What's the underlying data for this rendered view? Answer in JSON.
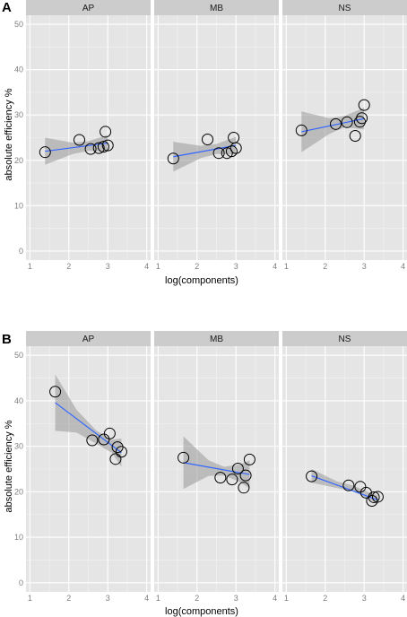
{
  "chart_data": [
    {
      "label": "A",
      "type": "scatter",
      "xlabel": "log(components)",
      "ylabel": "absolute efficiency %",
      "xlim": [
        0.9,
        4.1
      ],
      "ylim": [
        -2,
        52
      ],
      "xticks": [
        "1",
        "2",
        "3",
        "4"
      ],
      "yticks": [
        "0",
        "10",
        "20",
        "30",
        "40",
        "50"
      ],
      "facets": [
        {
          "name": "AP",
          "points": [
            [
              1.39,
              21.8
            ],
            [
              2.27,
              24.5
            ],
            [
              2.56,
              22.5
            ],
            [
              2.77,
              22.7
            ],
            [
              2.89,
              23.0
            ],
            [
              2.94,
              26.3
            ],
            [
              3.0,
              23.3
            ]
          ],
          "fit": [
            [
              1.39,
              22.0
            ],
            [
              3.0,
              23.8
            ]
          ],
          "band_low": [
            [
              1.39,
              19.0
            ],
            [
              2.1,
              21.4
            ],
            [
              2.5,
              22.1
            ],
            [
              3.0,
              22.0
            ]
          ],
          "band_high": [
            [
              1.39,
              25.0
            ],
            [
              2.1,
              23.9
            ],
            [
              2.5,
              24.2
            ],
            [
              3.0,
              25.6
            ]
          ]
        },
        {
          "name": "MB",
          "points": [
            [
              1.39,
              20.4
            ],
            [
              2.27,
              24.6
            ],
            [
              2.56,
              21.6
            ],
            [
              2.77,
              21.6
            ],
            [
              2.89,
              22.0
            ],
            [
              2.94,
              25.0
            ],
            [
              3.0,
              22.7
            ]
          ],
          "fit": [
            [
              1.39,
              20.8
            ],
            [
              3.0,
              23.3
            ]
          ],
          "band_low": [
            [
              1.39,
              17.5
            ],
            [
              2.1,
              20.5
            ],
            [
              2.5,
              21.4
            ],
            [
              3.0,
              21.3
            ]
          ],
          "band_high": [
            [
              1.39,
              24.1
            ],
            [
              2.1,
              23.2
            ],
            [
              2.5,
              23.6
            ],
            [
              3.0,
              25.2
            ]
          ]
        },
        {
          "name": "NS",
          "points": [
            [
              1.39,
              26.6
            ],
            [
              2.27,
              28.0
            ],
            [
              2.56,
              28.4
            ],
            [
              2.77,
              25.4
            ],
            [
              2.89,
              28.5
            ],
            [
              2.94,
              29.3
            ],
            [
              3.0,
              32.2
            ]
          ],
          "fit": [
            [
              1.39,
              26.3
            ],
            [
              3.0,
              29.2
            ]
          ],
          "band_low": [
            [
              1.39,
              21.8
            ],
            [
              2.1,
              25.8
            ],
            [
              2.5,
              27.3
            ],
            [
              3.0,
              26.8
            ]
          ],
          "band_high": [
            [
              1.39,
              30.8
            ],
            [
              2.1,
              29.3
            ],
            [
              2.5,
              29.8
            ],
            [
              3.0,
              31.6
            ]
          ]
        }
      ]
    },
    {
      "label": "B",
      "type": "scatter",
      "xlabel": "log(components)",
      "ylabel": "absolute efficiency %",
      "xlim": [
        0.9,
        4.1
      ],
      "ylim": [
        -2,
        52
      ],
      "xticks": [
        "1",
        "2",
        "3",
        "4"
      ],
      "yticks": [
        "0",
        "10",
        "20",
        "30",
        "40",
        "50"
      ],
      "facets": [
        {
          "name": "AP",
          "points": [
            [
              1.65,
              42.0
            ],
            [
              2.6,
              31.3
            ],
            [
              2.9,
              31.5
            ],
            [
              3.05,
              32.8
            ],
            [
              3.2,
              27.2
            ],
            [
              3.25,
              29.8
            ],
            [
              3.35,
              28.8
            ]
          ],
          "fit": [
            [
              1.65,
              39.6
            ],
            [
              3.35,
              28.6
            ]
          ],
          "band_low": [
            [
              1.65,
              33.4
            ],
            [
              2.2,
              33.0
            ],
            [
              2.7,
              30.6
            ],
            [
              3.1,
              28.6
            ],
            [
              3.35,
              25.5
            ]
          ],
          "band_high": [
            [
              1.65,
              45.8
            ],
            [
              2.2,
              38.0
            ],
            [
              2.7,
              33.5
            ],
            [
              3.1,
              31.4
            ],
            [
              3.35,
              31.7
            ]
          ]
        },
        {
          "name": "MB",
          "points": [
            [
              1.65,
              27.5
            ],
            [
              2.6,
              23.1
            ],
            [
              2.9,
              22.7
            ],
            [
              3.05,
              25.1
            ],
            [
              3.2,
              20.9
            ],
            [
              3.25,
              23.6
            ],
            [
              3.35,
              27.1
            ]
          ],
          "fit": [
            [
              1.65,
              26.4
            ],
            [
              3.35,
              23.8
            ]
          ],
          "band_low": [
            [
              1.65,
              20.6
            ],
            [
              2.3,
              23.5
            ],
            [
              2.7,
              23.6
            ],
            [
              3.1,
              22.1
            ],
            [
              3.35,
              20.7
            ]
          ],
          "band_high": [
            [
              1.65,
              32.2
            ],
            [
              2.3,
              26.9
            ],
            [
              2.7,
              25.5
            ],
            [
              3.1,
              26.0
            ],
            [
              3.35,
              26.9
            ]
          ]
        },
        {
          "name": "NS",
          "points": [
            [
              1.65,
              23.4
            ],
            [
              2.6,
              21.4
            ],
            [
              2.9,
              21.1
            ],
            [
              3.05,
              19.8
            ],
            [
              3.2,
              18.0
            ],
            [
              3.25,
              18.8
            ],
            [
              3.35,
              18.9
            ]
          ],
          "fit": [
            [
              1.65,
              23.5
            ],
            [
              3.35,
              18.2
            ]
          ],
          "band_low": [
            [
              1.65,
              22.0
            ],
            [
              2.3,
              20.8
            ],
            [
              2.7,
              20.2
            ],
            [
              3.1,
              18.5
            ],
            [
              3.35,
              17.2
            ]
          ],
          "band_high": [
            [
              1.65,
              25.0
            ],
            [
              2.3,
              22.3
            ],
            [
              2.7,
              21.4
            ],
            [
              3.1,
              20.0
            ],
            [
              3.35,
              19.2
            ]
          ]
        }
      ]
    }
  ],
  "colors": {
    "panel_bg": "#e5e5e5",
    "grid_major": "#ffffff",
    "grid_minor": "#f2f2f2",
    "strip_bg": "#cccccc",
    "band": "#999999",
    "fit_line": "#3366ff",
    "point_stroke": "#000000"
  }
}
